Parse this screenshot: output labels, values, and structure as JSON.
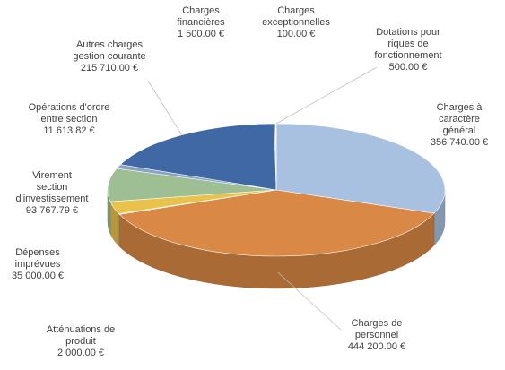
{
  "chart_data": {
    "type": "pie",
    "categories": [
      "Charges à\ncaractère\ngénéral",
      "Charges de\npersonnel",
      "Atténuations de\nproduit",
      "Dépenses\nimprévues",
      "Virement\nsection\nd'investissement",
      "Opérations d'ordre\nentre section",
      "Autres charges\ngestion courante",
      "Charges\nfinancières",
      "Charges\nexceptionnelles",
      "Dotations pour\nriques de\nfonctionnement"
    ],
    "values": [
      356740,
      444200,
      2000,
      35000,
      93767.79,
      11613.82,
      215710,
      1500,
      100,
      500
    ],
    "value_labels": [
      "356 740.00 €",
      "444 200.00 €",
      "2 000.00 €",
      "35 000.00 €",
      "93 767.79 €",
      "11 613.82 €",
      "215 710.00 €",
      "1 500.00 €",
      "100.00 €",
      "500.00 €"
    ],
    "colors": [
      "#a9c1e0",
      "#d98845",
      "#a5a5a5",
      "#e9c24c",
      "#9ebf94",
      "#8aa3c4",
      "#3f68a4",
      "#6f9150",
      "#8d63a3",
      "#4ba2c4"
    ]
  }
}
